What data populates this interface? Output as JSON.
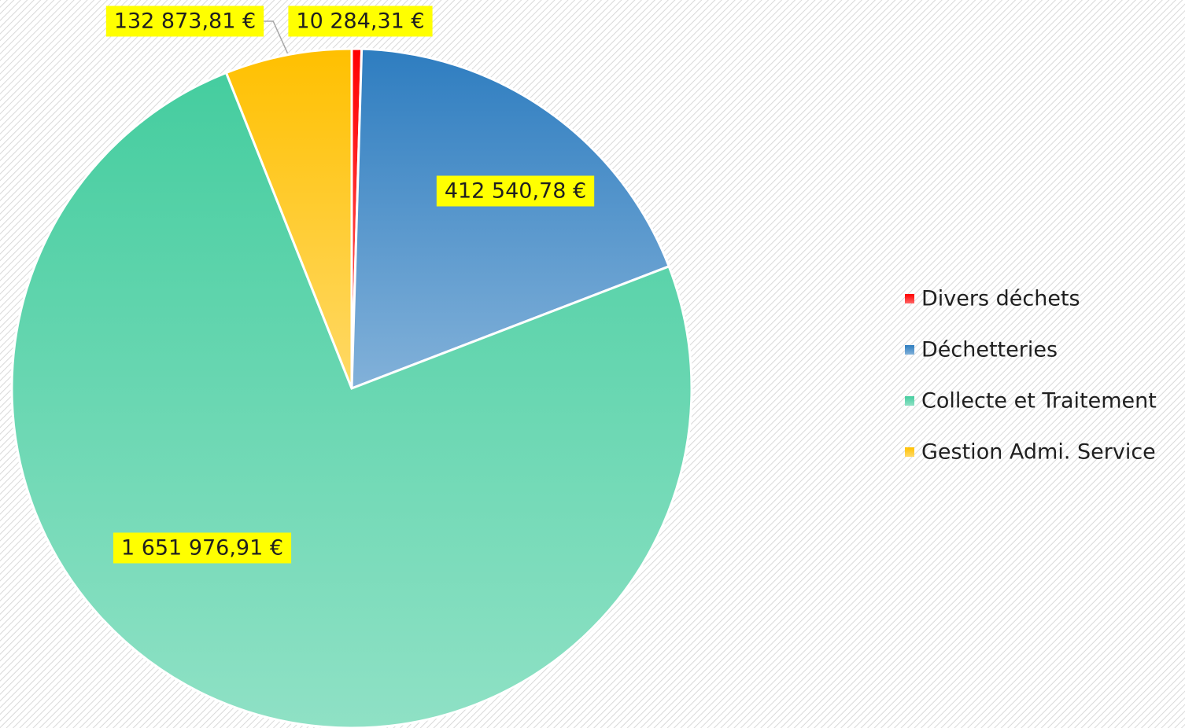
{
  "chart_data": {
    "type": "pie",
    "categories": [
      "Divers déchets",
      "Déchetteries",
      "Collecte et Traitement",
      "Gestion Admi. Service"
    ],
    "values": [
      10284.31,
      412540.78,
      1651976.91,
      132873.81
    ],
    "value_labels": [
      "10 284,31 €",
      "412 540,78 €",
      "1 651 976,91 €",
      "132 873,81 €"
    ],
    "colors": [
      "#ff0000",
      "#2e7dc0",
      "#45cd9f",
      "#ffc000"
    ],
    "legend": "right"
  }
}
